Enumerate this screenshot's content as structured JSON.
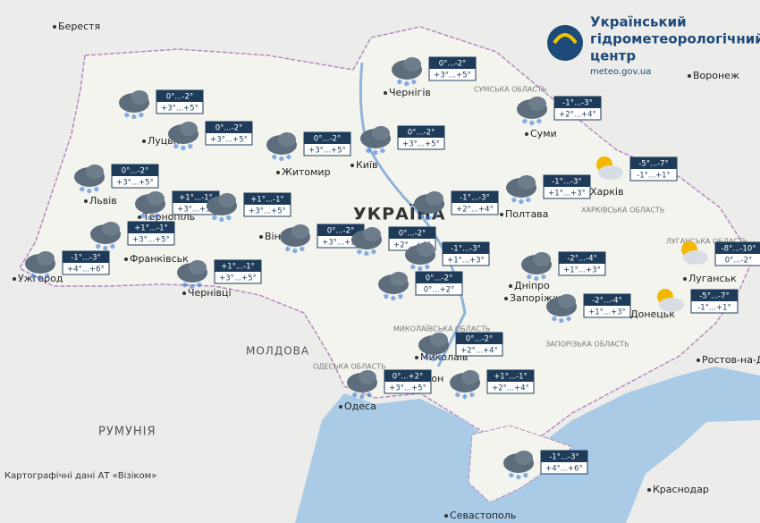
{
  "header": {
    "title": [
      "Український",
      "гідрометеорологічний",
      "центр"
    ],
    "url": "meteo.gov.ua"
  },
  "forecasts": [
    {
      "night": "0°...-2°",
      "day": "+3°...+5°",
      "icon": "snow"
    },
    {
      "night": "0°...-2°",
      "day": "+3°...+5°",
      "icon": "snow"
    },
    {
      "night": "0°...-2°",
      "day": "+3°...+5°",
      "icon": "snow"
    },
    {
      "night": "0°...-2°",
      "day": "+3°...+5°",
      "icon": "snow"
    },
    {
      "night": "0°...-2°",
      "day": "+3°...+5°",
      "icon": "snow"
    },
    {
      "night": "-1°...-3°",
      "day": "+2°...+4°",
      "icon": "snow"
    },
    {
      "night": "0°...-2°",
      "day": "+3°...+5°",
      "icon": "snow"
    },
    {
      "night": "+1°...-1°",
      "day": "+3°...+5°",
      "icon": "snow"
    },
    {
      "night": "+1°...-1°",
      "day": "+3°...+5°",
      "icon": "snow"
    },
    {
      "night": "+1°...-1°",
      "day": "+3°...+5°",
      "icon": "snow"
    },
    {
      "night": "-1°...-3°",
      "day": "+4°...+6°",
      "icon": "snow"
    },
    {
      "night": "+1°...-1°",
      "day": "+3°...+5°",
      "icon": "snow"
    },
    {
      "night": "0°...-2°",
      "day": "+3°...+5°",
      "icon": "snow"
    },
    {
      "night": "-1°...-3°",
      "day": "+2°...+4°",
      "icon": "snow"
    },
    {
      "night": "-1°...-3°",
      "day": "+1°...+3°",
      "icon": "snow"
    },
    {
      "night": "-5°...-7°",
      "day": "-1°...+1°",
      "icon": "sun-cloud"
    },
    {
      "night": "0°...-2°",
      "day": "+2°...+4°",
      "icon": "snow"
    },
    {
      "night": "-1°...-3°",
      "day": "+1°...+3°",
      "icon": "snow"
    },
    {
      "night": "0°...-2°",
      "day": "0°...+2°",
      "icon": "snow"
    },
    {
      "night": "-2°...-4°",
      "day": "+1°...+3°",
      "icon": "snow"
    },
    {
      "night": "-8°...-10°",
      "day": "0°...-2°",
      "icon": "sun-cloud"
    },
    {
      "night": "-2°...-4°",
      "day": "+1°...+3°",
      "icon": "snow"
    },
    {
      "night": "-5°...-7°",
      "day": "-1°...+1°",
      "icon": "sun-cloud"
    },
    {
      "night": "0°...-2°",
      "day": "+2°...+4°",
      "icon": "snow"
    },
    {
      "night": "0°...+2°",
      "day": "+3°...+5°",
      "icon": "snow"
    },
    {
      "night": "+1°...-1°",
      "day": "+2°...+4°",
      "icon": "snow"
    },
    {
      "night": "-1°...-3°",
      "day": "+4°...+6°",
      "icon": "snow"
    }
  ],
  "places": [
    "Берестя",
    "Чернігів",
    "Луцьк",
    "Житомир",
    "Київ",
    "Суми",
    "Львів",
    "Тернопіль",
    "Франківськ",
    "Ужгород",
    "Чернівці",
    "Вінниця",
    "Полтава",
    "Харків",
    "Дніпро",
    "Запоріжжя",
    "Донецьк",
    "Луганськ",
    "Одеса",
    "Севастополь",
    "Ростов-на-Дону",
    "Краснодар",
    "Воронеж",
    "Миколаїв",
    "Херсон"
  ],
  "countries": [
    "УКРАЇНА",
    "МОЛДОВА",
    "РУМУНІЯ"
  ],
  "regions": [
    "СУМСЬКА ОБЛАСТЬ",
    "ХАРКІВСЬКА ОБЛАСТЬ",
    "ЗАПОРІЗЬКА ОБЛАСТЬ",
    "ЛУГАНСЬКА ОБЛАСТЬ",
    "МИКОЛАЇВСЬКА ОБЛАСТЬ",
    "ОДЕСЬКА ОБЛАСТЬ"
  ],
  "attribution": "Картографічні дані АТ «Візіком»"
}
